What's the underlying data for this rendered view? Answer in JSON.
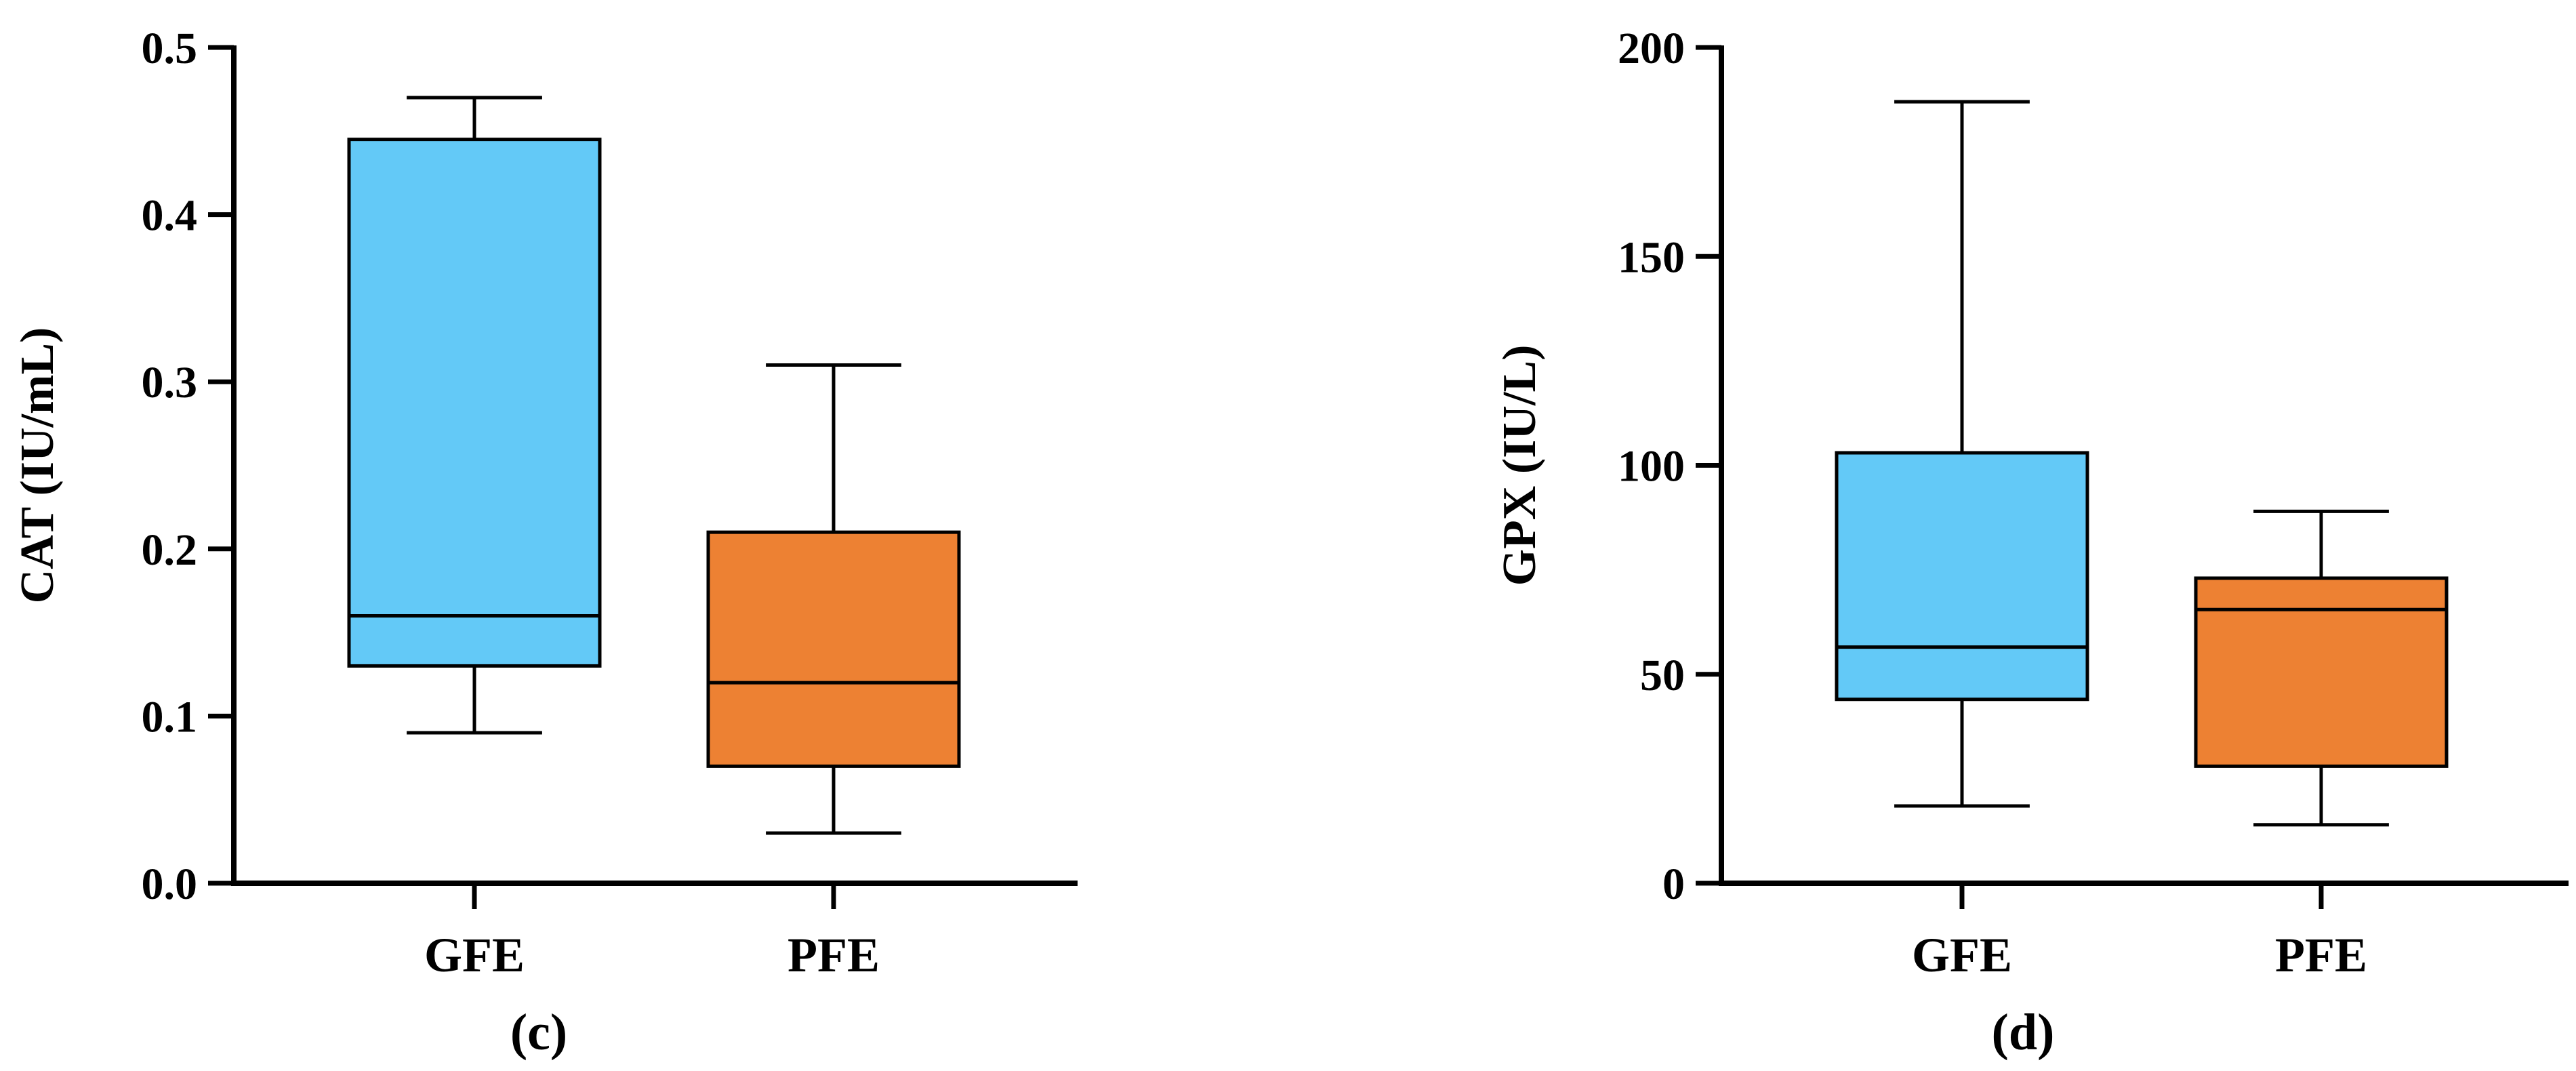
{
  "chart_data": [
    {
      "type": "box",
      "panel_label": "(c)",
      "ylabel": "CAT (IU/mL)",
      "xlabel": "",
      "ylim": [
        0,
        0.5
      ],
      "yticks": [
        0,
        0.1,
        0.2,
        0.3,
        0.4,
        0.5
      ],
      "ytick_labels": [
        "0.0",
        "0.1",
        "0.2",
        "0.3",
        "0.4",
        "0.5"
      ],
      "categories": [
        "GFE",
        "PFE"
      ],
      "boxes": [
        {
          "category": "GFE",
          "min": 0.09,
          "q1": 0.13,
          "median": 0.16,
          "q3": 0.445,
          "max": 0.47,
          "color": "#63C9F7"
        },
        {
          "category": "PFE",
          "min": 0.03,
          "q1": 0.07,
          "median": 0.12,
          "q3": 0.21,
          "max": 0.31,
          "color": "#ED8133"
        }
      ],
      "grid": false
    },
    {
      "type": "box",
      "panel_label": "(d)",
      "ylabel": "GPX (IU/L)",
      "xlabel": "",
      "ylim": [
        0,
        200
      ],
      "yticks": [
        0,
        50,
        100,
        150,
        200
      ],
      "ytick_labels": [
        "0",
        "50",
        "100",
        "150",
        "200"
      ],
      "categories": [
        "GFE",
        "PFE"
      ],
      "boxes": [
        {
          "category": "GFE",
          "min": 18.5,
          "q1": 44,
          "median": 56.5,
          "q3": 103,
          "max": 187,
          "color": "#63C9F7"
        },
        {
          "category": "PFE",
          "min": 14,
          "q1": 28,
          "median": 65.5,
          "q3": 73,
          "max": 89,
          "color": "#ED8133"
        }
      ],
      "grid": false
    }
  ]
}
